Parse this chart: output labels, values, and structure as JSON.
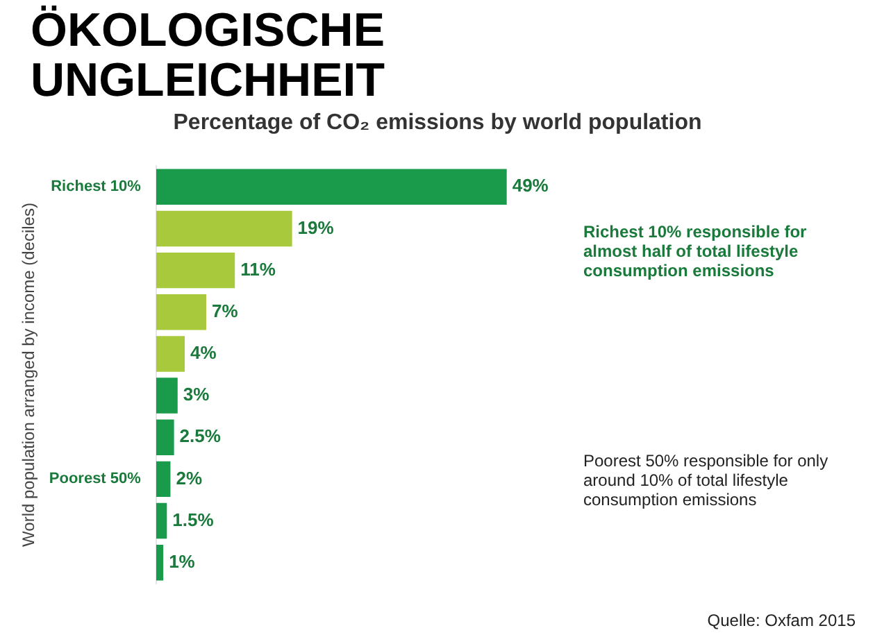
{
  "chart_data": {
    "type": "bar",
    "orientation": "horizontal",
    "title": "ÖKOLOGISCHE UNGLEICHHEIT",
    "subtitle": "Percentage of CO₂ emissions by world population",
    "ylabel": "World population arranged by income (deciles)",
    "categories": [
      "Richest 10%",
      null,
      null,
      null,
      null,
      null,
      null,
      "Poorest 50%",
      null,
      null
    ],
    "values": [
      49,
      19,
      11,
      7,
      4,
      3,
      2.5,
      2,
      1.5,
      1
    ],
    "value_labels": [
      "49%",
      "19%",
      "11%",
      "7%",
      "4%",
      "3%",
      "2.5%",
      "2%",
      "1.5%",
      "1%"
    ],
    "colors": [
      "#1a9b4b",
      "#a9c93c",
      "#a9c93c",
      "#a9c93c",
      "#a9c93c",
      "#1a9b4b",
      "#1a9b4b",
      "#1a9b4b",
      "#1a9b4b",
      "#1a9b4b"
    ],
    "annotations": [
      "Richest 10% responsible for almost half of total lifestyle consumption emissions",
      "Poorest 50% responsible for only around 10% of total lifestyle consumption emissions",
      "Quelle: Oxfam 2015"
    ],
    "tick_labels": "y",
    "grid": false,
    "legend": false
  }
}
